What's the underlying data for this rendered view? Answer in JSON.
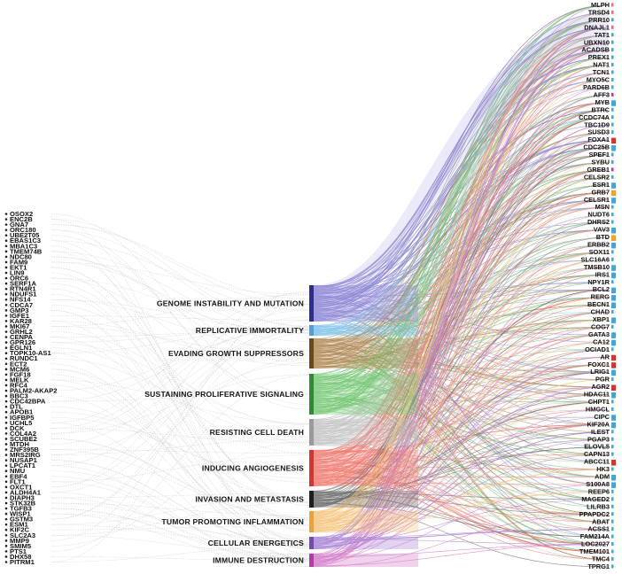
{
  "hallmarks": [
    {
      "label": "GENOME INSTABILITY AND MUTATION",
      "color": "#2b2e8f",
      "flow": "#8e89d6"
    },
    {
      "label": "REPLICATIVE IMMORTALITY",
      "color": "#4aa3d8",
      "flow": "#7fc3ea"
    },
    {
      "label": "EVADING GROWTH SUPPRESSORS",
      "color": "#6b4a1a",
      "flow": "#b08a55"
    },
    {
      "label": "SUSTAINING PROLIFERATIVE SIGNALING",
      "color": "#2e8b2e",
      "flow": "#78c878"
    },
    {
      "label": "RESISTING CELL DEATH",
      "color": "#9a9a9a",
      "flow": "#c4c4c4"
    },
    {
      "label": "INDUCING ANGIOGENESIS",
      "color": "#d9342b",
      "flow": "#f07b70"
    },
    {
      "label": "INVASION AND METASTASIS",
      "color": "#1e1e1e",
      "flow": "#6e6e6e"
    },
    {
      "label": "TUMOR PROMOTING INFLAMMATION",
      "color": "#f0a22e",
      "flow": "#f5c47a"
    },
    {
      "label": "CELLULAR ENERGETICS",
      "color": "#7a45b5",
      "flow": "#a985d6"
    },
    {
      "label": "IMMUNE DESTRUCTION",
      "color": "#b83aa8",
      "flow": "#d47ec8"
    }
  ],
  "left_genes": [
    "OSOX2",
    "ENC2B",
    "GNA7",
    "ORC180",
    "UBE2T05",
    "EBAS1C3",
    "MBA1C3",
    "TMEM74B",
    "NDC80",
    "FAM9",
    "EKT1",
    "LIN9",
    "ORC6",
    "SERF1A",
    "RTN4R1",
    "NDUFS1",
    "NFS14",
    "CDCA7",
    "GMP3",
    "IGFE1",
    "KAR28",
    "MKI67",
    "GRHL2",
    "CENPA",
    "GPR126",
    "EGLN1",
    "TOPK10-AS1",
    "RUNDC1",
    "ECT2",
    "MCM6",
    "FGF18",
    "MELK",
    "RFC4",
    "PALM2-AKAP2",
    "BBC3",
    "CDC42BPA",
    "DTL",
    "APOB1",
    "IGFBP5",
    "UCHL5",
    "DCK",
    "COL4A2",
    "SCUBE2",
    "MTDH",
    "ZNF395B",
    "MRS2IRG",
    "NUSAP1",
    "LPCAT1",
    "NMU",
    "EBF4",
    "FLT1",
    "OXCT1",
    "ALDH4A1",
    "DIAPH3",
    "STK32B",
    "TGFB3",
    "WISP1",
    "GSTM3",
    "ESM1",
    "KIF2C",
    "SLC2A3",
    "MMP9",
    "SMIM5",
    "PTS1",
    "DHX58",
    "PITRM1"
  ],
  "right_genes": [
    {
      "name": "MLPH",
      "color": "#e07080",
      "bar": 0
    },
    {
      "name": "TRSD4",
      "color": "#e07080",
      "bar": 0
    },
    {
      "name": "PRR10",
      "color": "#4aa3d8",
      "bar": 0
    },
    {
      "name": "DNAJL1",
      "color": "#e07080",
      "bar": 0
    },
    {
      "name": "TAT1",
      "color": "#4aa3d8",
      "bar": 0
    },
    {
      "name": "UBXN10",
      "color": "#4aa3d8",
      "bar": 0
    },
    {
      "name": "ACADSB",
      "color": "#4aa3d8",
      "bar": 0
    },
    {
      "name": "PREX1",
      "color": "#4aa3d8",
      "bar": 0
    },
    {
      "name": "NAT1",
      "color": "#4aa3d8",
      "bar": 0
    },
    {
      "name": "TCN1",
      "color": "#4aa3d8",
      "bar": 0
    },
    {
      "name": "MYO5C",
      "color": "#4aa3d8",
      "bar": 0
    },
    {
      "name": "PARD6B",
      "color": "#4aa3d8",
      "bar": 0
    },
    {
      "name": "AFF3",
      "color": "#b83aa8",
      "bar": 0
    },
    {
      "name": "MYB",
      "color": "#4aa3d8",
      "bar": 1
    },
    {
      "name": "BTRC",
      "color": "#4aa3d8",
      "bar": 0
    },
    {
      "name": "CCDC74A",
      "color": "#4aa3d8",
      "bar": 0
    },
    {
      "name": "TBC1D9",
      "color": "#4aa3d8",
      "bar": 0
    },
    {
      "name": "SUSD3",
      "color": "#4aa3d8",
      "bar": 0
    },
    {
      "name": "FOXA1",
      "color": "#d9342b",
      "bar": 1
    },
    {
      "name": "CDC25B",
      "color": "#4aa3d8",
      "bar": 1
    },
    {
      "name": "SPEF1",
      "color": "#4aa3d8",
      "bar": 0
    },
    {
      "name": "SYBU",
      "color": "#4aa3d8",
      "bar": 0
    },
    {
      "name": "GREB1",
      "color": "#b83aa8",
      "bar": 0
    },
    {
      "name": "CELSR2",
      "color": "#4aa3d8",
      "bar": 0
    },
    {
      "name": "ESR1",
      "color": "#4aa3d8",
      "bar": 1
    },
    {
      "name": "GRB7",
      "color": "#f0a22e",
      "bar": 1
    },
    {
      "name": "CELSR1",
      "color": "#4aa3d8",
      "bar": 1
    },
    {
      "name": "MSN",
      "color": "#4aa3d8",
      "bar": 0
    },
    {
      "name": "NUDT6",
      "color": "#4aa3d8",
      "bar": 0
    },
    {
      "name": "DHRS2",
      "color": "#4aa3d8",
      "bar": 0
    },
    {
      "name": "VAV3",
      "color": "#4aa3d8",
      "bar": 1
    },
    {
      "name": "BTD",
      "color": "#f0a22e",
      "bar": 1
    },
    {
      "name": "ERBB2",
      "color": "#4aa3d8",
      "bar": 1
    },
    {
      "name": "SOX11",
      "color": "#4aa3d8",
      "bar": 0
    },
    {
      "name": "SLC16A6",
      "color": "#4aa3d8",
      "bar": 0
    },
    {
      "name": "TMSB10",
      "color": "#4aa3d8",
      "bar": 1
    },
    {
      "name": "IRS1",
      "color": "#4aa3d8",
      "bar": 1
    },
    {
      "name": "NPY1R",
      "color": "#4aa3d8",
      "bar": 0
    },
    {
      "name": "BCL2",
      "color": "#4aa3d8",
      "bar": 1
    },
    {
      "name": "RERG",
      "color": "#4aa3d8",
      "bar": 1
    },
    {
      "name": "BECN1",
      "color": "#4aa3d8",
      "bar": 1
    },
    {
      "name": "CHAD",
      "color": "#4aa3d8",
      "bar": 0
    },
    {
      "name": "XBP1",
      "color": "#4aa3d8",
      "bar": 1
    },
    {
      "name": "COG7",
      "color": "#4aa3d8",
      "bar": 0
    },
    {
      "name": "GATA3",
      "color": "#4aa3d8",
      "bar": 1
    },
    {
      "name": "CA12",
      "color": "#4aa3d8",
      "bar": 1
    },
    {
      "name": "OCIAD1",
      "color": "#4aa3d8",
      "bar": 0
    },
    {
      "name": "AR",
      "color": "#d9342b",
      "bar": 1
    },
    {
      "name": "FOXC1",
      "color": "#d9342b",
      "bar": 1
    },
    {
      "name": "LRIG1",
      "color": "#4aa3d8",
      "bar": 1
    },
    {
      "name": "PGR",
      "color": "#4aa3d8",
      "bar": 0
    },
    {
      "name": "AGR2",
      "color": "#d9342b",
      "bar": 1
    },
    {
      "name": "HDAC11",
      "color": "#4aa3d8",
      "bar": 1
    },
    {
      "name": "CHPT1",
      "color": "#4aa3d8",
      "bar": 0
    },
    {
      "name": "HMGCL",
      "color": "#4aa3d8",
      "bar": 0
    },
    {
      "name": "CIPC",
      "color": "#4aa3d8",
      "bar": 1
    },
    {
      "name": "KIF20A",
      "color": "#4aa3d8",
      "bar": 1
    },
    {
      "name": "ILEST",
      "color": "#4aa3d8",
      "bar": 0
    },
    {
      "name": "PGAP3",
      "color": "#4aa3d8",
      "bar": 0
    },
    {
      "name": "ELOVL5",
      "color": "#4aa3d8",
      "bar": 0
    },
    {
      "name": "CAPN13",
      "color": "#4aa3d8",
      "bar": 0
    },
    {
      "name": "ABCC11",
      "color": "#d9342b",
      "bar": 1
    },
    {
      "name": "HK3",
      "color": "#4aa3d8",
      "bar": 0
    },
    {
      "name": "ADM",
      "color": "#4aa3d8",
      "bar": 1
    },
    {
      "name": "S100A8",
      "color": "#4aa3d8",
      "bar": 1
    },
    {
      "name": "REEP6",
      "color": "#4aa3d8",
      "bar": 0
    },
    {
      "name": "MAGED2",
      "color": "#4aa3d8",
      "bar": 0
    },
    {
      "name": "LILRB3",
      "color": "#4aa3d8",
      "bar": 0
    },
    {
      "name": "PPAPDC2",
      "color": "#4aa3d8",
      "bar": 0
    },
    {
      "name": "ABAT",
      "color": "#4aa3d8",
      "bar": 0
    },
    {
      "name": "ACSS1",
      "color": "#4aa3d8",
      "bar": 0
    },
    {
      "name": "FAM214A",
      "color": "#4aa3d8",
      "bar": 0
    },
    {
      "name": "LOC2027",
      "color": "#4aa3d8",
      "bar": 0
    },
    {
      "name": "TMEM101",
      "color": "#4aa3d8",
      "bar": 0
    },
    {
      "name": "TMC4",
      "color": "#4aa3d8",
      "bar": 0
    },
    {
      "name": "TPRG1",
      "color": "#4aa3d8",
      "bar": 0
    }
  ]
}
